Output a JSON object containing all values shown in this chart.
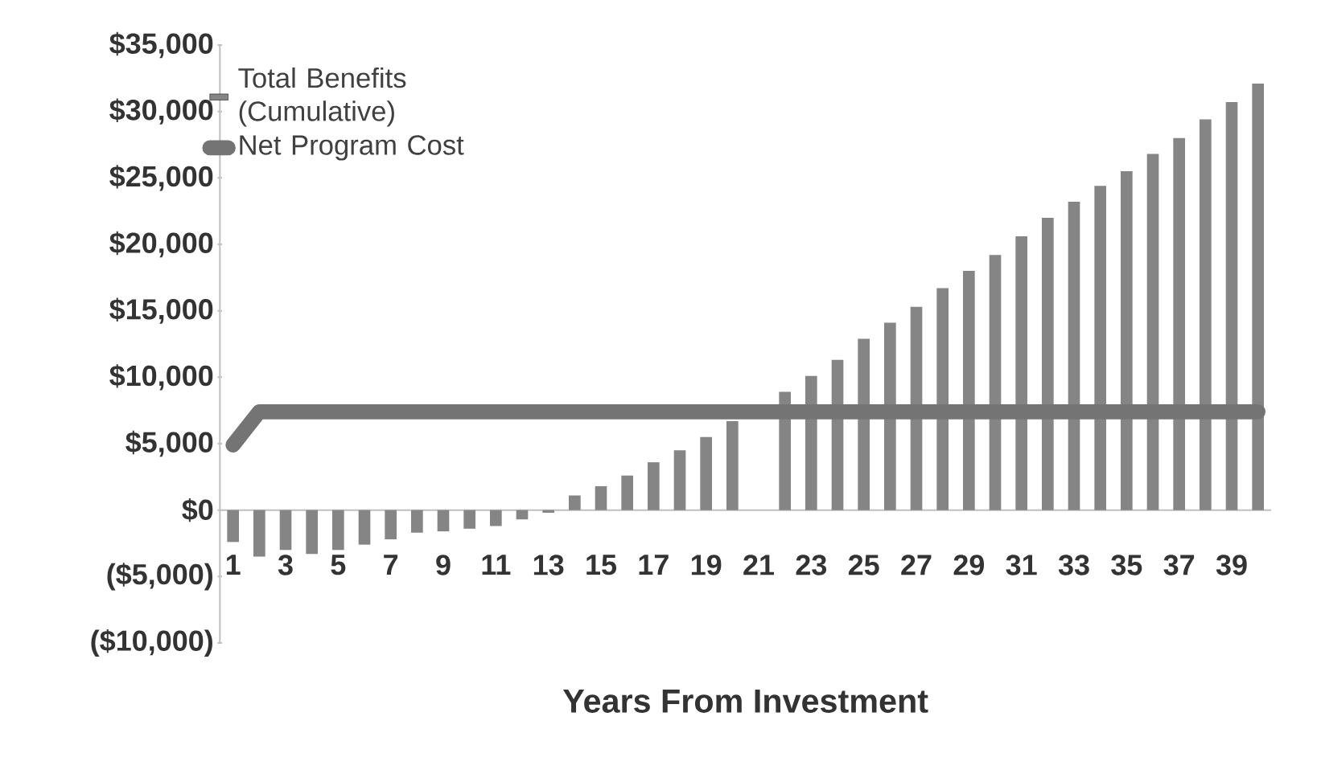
{
  "chart_data": {
    "type": "bar",
    "xlabel": "Years From Investment",
    "categories": [
      "1",
      null,
      "3",
      null,
      "5",
      null,
      "7",
      null,
      "9",
      null,
      "11",
      null,
      "13",
      null,
      "15",
      null,
      "17",
      null,
      "19",
      null,
      "21",
      null,
      "23",
      null,
      "25",
      null,
      "27",
      null,
      "29",
      null,
      "31",
      null,
      "33",
      null,
      "35",
      null,
      "37",
      null,
      "39",
      null
    ],
    "series": [
      {
        "name": "Total Benefits (Cumulative)",
        "color": "#858585",
        "values": [
          -2400,
          -3500,
          -3000,
          -3300,
          -3000,
          -2600,
          -2200,
          -1700,
          -1600,
          -1400,
          -1200,
          -700,
          -200,
          1100,
          1800,
          2600,
          3600,
          4500,
          5500,
          6700,
          null,
          8900,
          10100,
          11300,
          12900,
          14100,
          15300,
          16700,
          18000,
          19200,
          20600,
          22000,
          23200,
          24400,
          25500,
          26800,
          28000,
          29400,
          30700,
          32100
        ]
      },
      {
        "name": "Net Program Cost",
        "type": "line",
        "color": "#747474",
        "values": [
          4900,
          7400,
          7400,
          7400,
          7400,
          7400,
          7400,
          7400,
          7400,
          7400,
          7400,
          7400,
          7400,
          7400,
          7400,
          7400,
          7400,
          7400,
          7400,
          7400,
          7400,
          7400,
          7400,
          7400,
          7400,
          7400,
          7400,
          7400,
          7400,
          7400,
          7400,
          7400,
          7400,
          7400,
          7400,
          7400,
          7400,
          7400,
          7400,
          7400
        ]
      }
    ],
    "ylim": [
      -10000,
      35000
    ],
    "yticks": [
      {
        "value": -10000,
        "label": "($10,000)"
      },
      {
        "value": -5000,
        "label": "($5,000)"
      },
      {
        "value": 0,
        "label": "$0"
      },
      {
        "value": 5000,
        "label": "$5,000"
      },
      {
        "value": 10000,
        "label": "$10,000"
      },
      {
        "value": 15000,
        "label": "$15,000"
      },
      {
        "value": 20000,
        "label": "$20,000"
      },
      {
        "value": 25000,
        "label": "$25,000"
      },
      {
        "value": 30000,
        "label": "$30,000"
      },
      {
        "value": 35000,
        "label": "$35,000"
      }
    ],
    "legend": "top left"
  }
}
